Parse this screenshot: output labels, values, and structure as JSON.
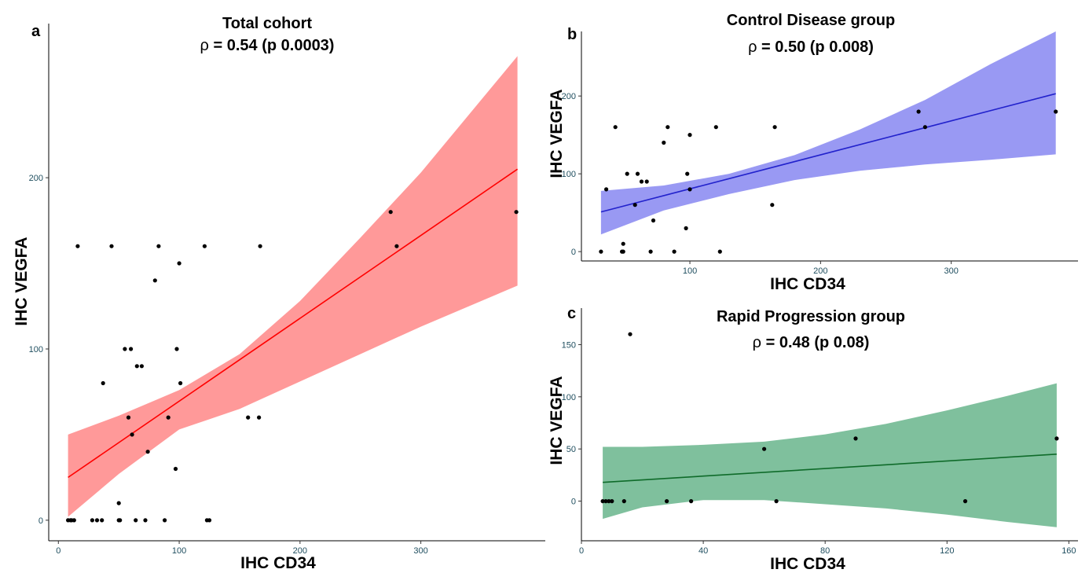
{
  "chart_data": [
    {
      "type": "scatter",
      "panel": "a",
      "title": "Total cohort",
      "subtitle_prefix": "ρ",
      "subtitle_value": "= 0.54",
      "subtitle_p": "(p 0.0003)",
      "xlabel": "IHC CD34",
      "ylabel": "IHC VEGFA",
      "xlim": [
        -8,
        403
      ],
      "ylim": [
        -12,
        290
      ],
      "xticks": [
        0,
        100,
        200,
        300
      ],
      "yticks": [
        0,
        100,
        200
      ],
      "color": "#ff7f7f",
      "line_color": "#ff0000",
      "fit": {
        "x": [
          8,
          380
        ],
        "y": [
          25,
          205
        ]
      },
      "band": {
        "x": [
          8,
          50,
          100,
          150,
          200,
          250,
          300,
          340,
          380
        ],
        "upper": [
          50,
          61,
          76,
          97,
          128,
          165,
          203,
          237,
          271
        ],
        "lower": [
          2,
          27,
          53,
          65,
          81,
          97,
          113,
          125,
          137
        ]
      },
      "points": [
        [
          8,
          0
        ],
        [
          10,
          0
        ],
        [
          11,
          0
        ],
        [
          13,
          0
        ],
        [
          16,
          160
        ],
        [
          28,
          0
        ],
        [
          32,
          0
        ],
        [
          36,
          0
        ],
        [
          37,
          80
        ],
        [
          44,
          160
        ],
        [
          50,
          0
        ],
        [
          50,
          10
        ],
        [
          51,
          0
        ],
        [
          55,
          100
        ],
        [
          58,
          60
        ],
        [
          60,
          100
        ],
        [
          61,
          50
        ],
        [
          64,
          0
        ],
        [
          65,
          90
        ],
        [
          69,
          90
        ],
        [
          72,
          0
        ],
        [
          74,
          40
        ],
        [
          80,
          140
        ],
        [
          83,
          160
        ],
        [
          88,
          0
        ],
        [
          91,
          60
        ],
        [
          97,
          30
        ],
        [
          98,
          100
        ],
        [
          100,
          150
        ],
        [
          101,
          80
        ],
        [
          121,
          160
        ],
        [
          123,
          0
        ],
        [
          125,
          0
        ],
        [
          157,
          60
        ],
        [
          166,
          60
        ],
        [
          167,
          160
        ],
        [
          275,
          180
        ],
        [
          280,
          160
        ],
        [
          379,
          180
        ]
      ]
    },
    {
      "type": "scatter",
      "panel": "b",
      "title": "Control Disease group",
      "subtitle_prefix": "ρ",
      "subtitle_value": "= 0.50",
      "subtitle_p": "(p 0.008)",
      "xlabel": "IHC CD34",
      "ylabel": "IHC VEGFA",
      "xlim": [
        17,
        397
      ],
      "ylim": [
        -12,
        283
      ],
      "xticks": [
        100,
        200,
        300
      ],
      "yticks": [
        0,
        100,
        200
      ],
      "color": "#8080f0",
      "line_color": "#2222cc",
      "fit": {
        "x": [
          32,
          380
        ],
        "y": [
          51,
          203
        ]
      },
      "band": {
        "x": [
          32,
          80,
          130,
          180,
          230,
          280,
          330,
          380
        ],
        "upper": [
          78,
          85,
          100,
          124,
          157,
          195,
          241,
          283
        ],
        "lower": [
          22,
          53,
          74,
          92,
          104,
          112,
          118,
          125
        ]
      },
      "points": [
        [
          32,
          0
        ],
        [
          36,
          80
        ],
        [
          43,
          160
        ],
        [
          48,
          0
        ],
        [
          49,
          10
        ],
        [
          49,
          0
        ],
        [
          52,
          100
        ],
        [
          58,
          60
        ],
        [
          60,
          100
        ],
        [
          63,
          90
        ],
        [
          67,
          90
        ],
        [
          70,
          0
        ],
        [
          72,
          40
        ],
        [
          80,
          140
        ],
        [
          83,
          160
        ],
        [
          88,
          0
        ],
        [
          97,
          30
        ],
        [
          98,
          100
        ],
        [
          100,
          150
        ],
        [
          100,
          80
        ],
        [
          120,
          160
        ],
        [
          123,
          0
        ],
        [
          163,
          60
        ],
        [
          165,
          160
        ],
        [
          275,
          180
        ],
        [
          280,
          160
        ],
        [
          380,
          180
        ]
      ]
    },
    {
      "type": "scatter",
      "panel": "c",
      "title": "Rapid Progression group",
      "subtitle_prefix": "ρ",
      "subtitle_value": "= 0.48",
      "subtitle_p": "(p 0.08)",
      "xlabel": "IHC CD34",
      "ylabel": "IHC VEGFA",
      "xlim": [
        0,
        163
      ],
      "ylim": [
        -38,
        185
      ],
      "xticks": [
        0,
        40,
        80,
        120,
        160
      ],
      "yticks": [
        0,
        50,
        100,
        150
      ],
      "color": "#5fb085",
      "line_color": "#0f6b2a",
      "fit": {
        "x": [
          7,
          156
        ],
        "y": [
          18,
          45
        ]
      },
      "band": {
        "x": [
          7,
          20,
          40,
          60,
          80,
          100,
          120,
          140,
          156
        ],
        "upper": [
          52,
          52,
          54,
          57,
          64,
          74,
          87,
          101,
          113
        ],
        "lower": [
          -17,
          -6,
          1,
          1,
          -3,
          -7,
          -13,
          -20,
          -25
        ]
      },
      "points": [
        [
          7,
          0
        ],
        [
          8,
          0
        ],
        [
          9,
          0
        ],
        [
          10,
          0
        ],
        [
          14,
          0
        ],
        [
          16,
          160
        ],
        [
          28,
          0
        ],
        [
          36,
          0
        ],
        [
          60,
          50
        ],
        [
          64,
          0
        ],
        [
          90,
          60
        ],
        [
          126,
          0
        ],
        [
          156,
          60
        ]
      ]
    }
  ]
}
